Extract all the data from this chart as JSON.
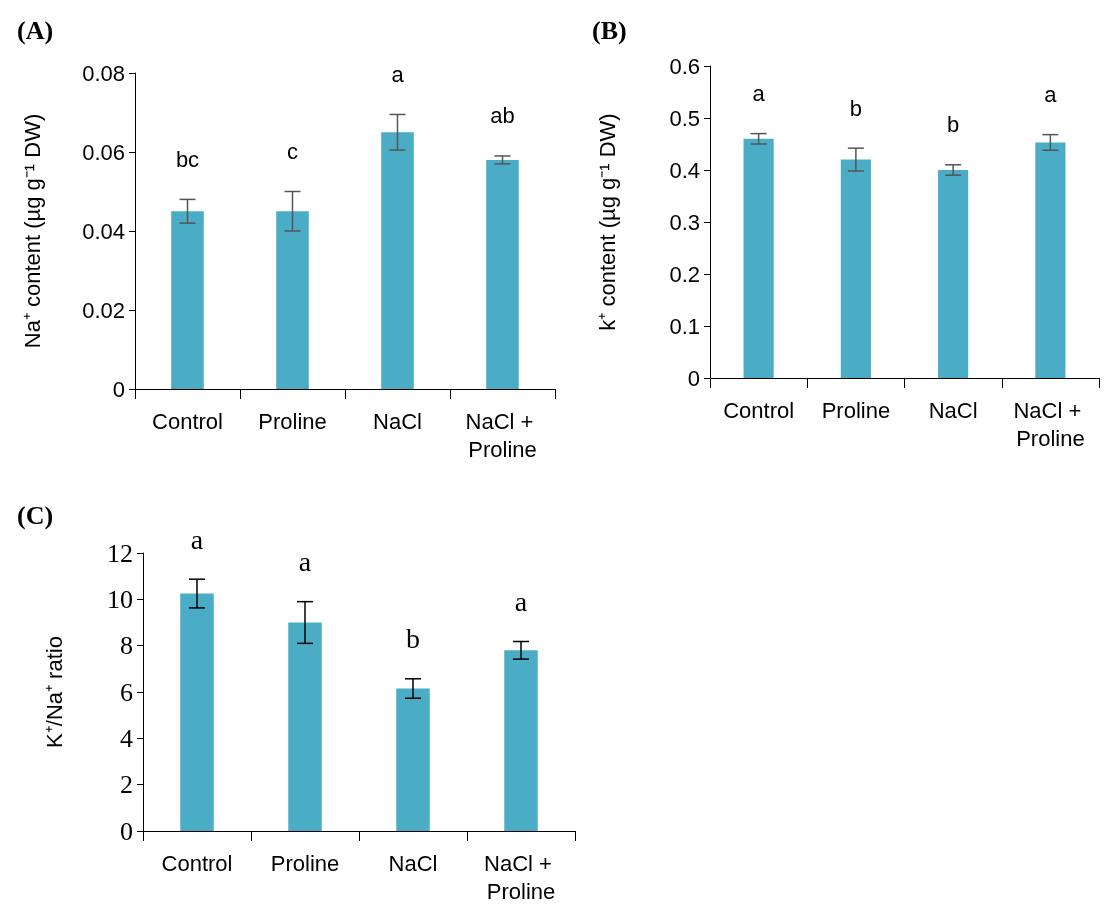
{
  "chart_data": [
    {
      "type": "bar",
      "title": "(A)",
      "ylabel": "Na⁺ content (µg g⁻¹ DW)",
      "categories": [
        "Control",
        "Proline",
        "NaCl",
        "NaCl + Proline"
      ],
      "values": [
        0.045,
        0.045,
        0.065,
        0.058
      ],
      "errors": [
        0.003,
        0.005,
        0.0045,
        0.001
      ],
      "color": "#4bacc6",
      "ylim": [
        0,
        0.08
      ],
      "yticks": [
        0,
        0.02,
        0.04,
        0.06,
        0.08
      ],
      "annotations": [
        {
          "text": "bc",
          "x": "Control",
          "y": 0.045
        },
        {
          "text": "c",
          "x": "Proline",
          "y": 0.045
        },
        {
          "text": "a",
          "x": "NaCl",
          "y": 0.065
        },
        {
          "text": "ab",
          "x": "NaCl + Proline",
          "y": 0.058
        }
      ]
    },
    {
      "type": "bar",
      "title": "(B)",
      "ylabel": "k⁺ content (µg g⁻¹ DW)",
      "categories": [
        "Control",
        "Proline",
        "NaCl",
        "NaCl + Proline"
      ],
      "values": [
        0.46,
        0.42,
        0.4,
        0.453
      ],
      "errors": [
        0.01,
        0.022,
        0.01,
        0.015
      ],
      "color": "#4bacc6",
      "ylim": [
        0,
        0.6
      ],
      "yticks": [
        0,
        0.1,
        0.2,
        0.3,
        0.4,
        0.5,
        0.6
      ],
      "annotations": [
        {
          "text": "a",
          "x": "Control",
          "y": 0.46
        },
        {
          "text": "b",
          "x": "Proline",
          "y": 0.42
        },
        {
          "text": "b",
          "x": "NaCl",
          "y": 0.4
        },
        {
          "text": "a",
          "x": "NaCl + Proline",
          "y": 0.453
        }
      ]
    },
    {
      "type": "bar",
      "title": "(C)",
      "ylabel": "K⁺/Na⁺ ratio",
      "categories": [
        "Control",
        "Proline",
        "NaCl",
        "NaCl + Proline"
      ],
      "values": [
        10.25,
        9.0,
        6.15,
        7.8
      ],
      "errors": [
        0.62,
        0.9,
        0.42,
        0.38
      ],
      "color": "#4bacc6",
      "ylim": [
        0,
        12
      ],
      "yticks": [
        0,
        2,
        4,
        6,
        8,
        10,
        12
      ],
      "annotations": [
        {
          "text": "a",
          "x": "Control",
          "y": 10.25
        },
        {
          "text": "a",
          "x": "Proline",
          "y": 9.0
        },
        {
          "text": "b",
          "x": "NaCl",
          "y": 6.15
        },
        {
          "text": "a",
          "x": "NaCl + Proline",
          "y": 7.8
        }
      ]
    }
  ]
}
